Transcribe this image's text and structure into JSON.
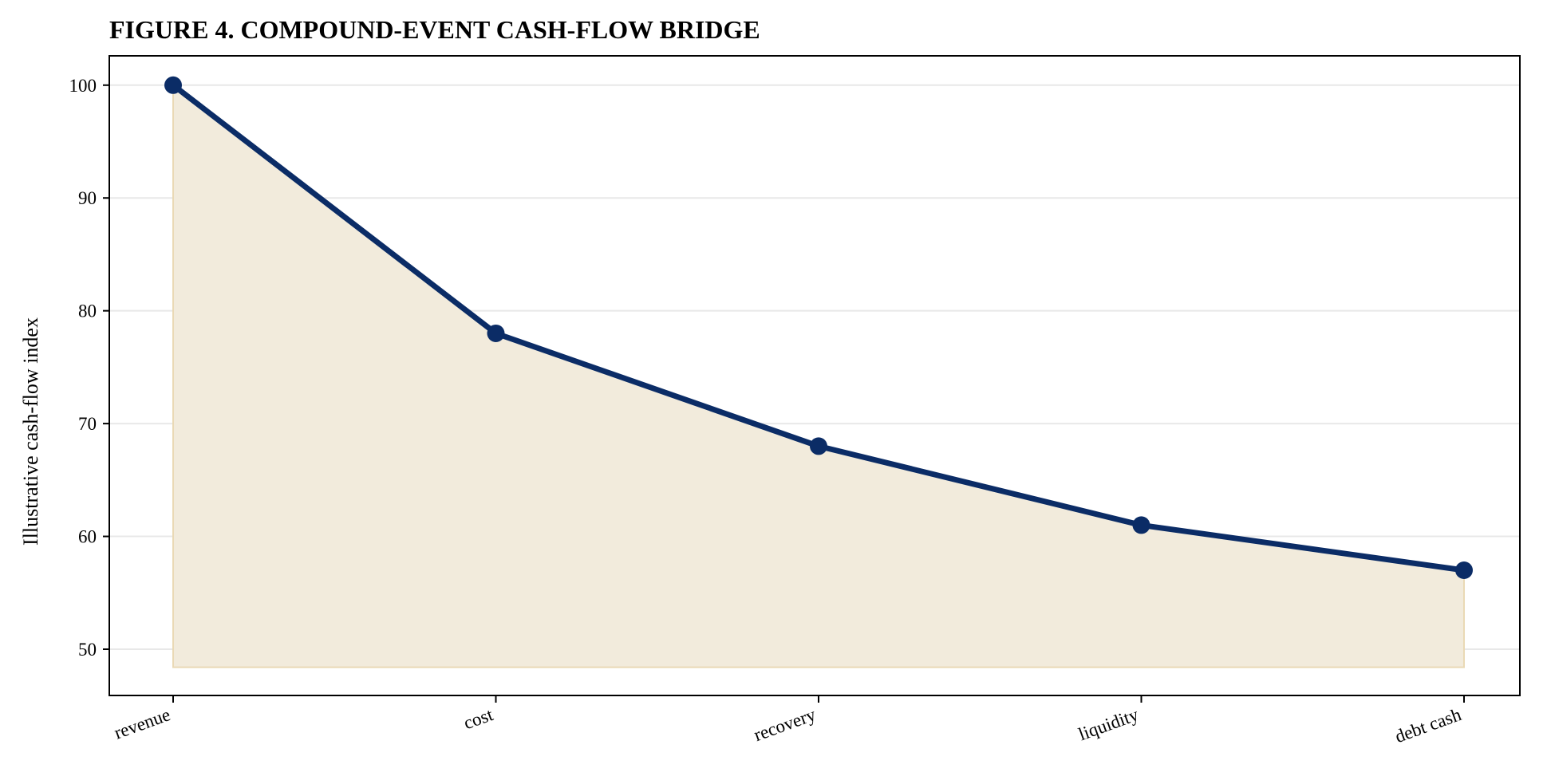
{
  "chart_data": {
    "type": "area",
    "title": "FIGURE 4. COMPOUND-EVENT CASH-FLOW BRIDGE",
    "xlabel": "",
    "ylabel": "Illustrative cash-flow index",
    "categories": [
      "revenue",
      "cost",
      "recovery",
      "liquidity",
      "debt cash"
    ],
    "series": [
      {
        "values": [
          100,
          78,
          68,
          61,
          57
        ]
      }
    ],
    "fill_baseline": 48.4,
    "ylim": [
      45.9,
      102.6
    ],
    "yticks": [
      50,
      60,
      70,
      80,
      90,
      100
    ],
    "grid": "horizontal",
    "line_color": "#0b2c66",
    "fill_color": "#f2ebdc",
    "fill_edge_color": "#ead9b5",
    "grid_color": "#e8e8e8"
  }
}
